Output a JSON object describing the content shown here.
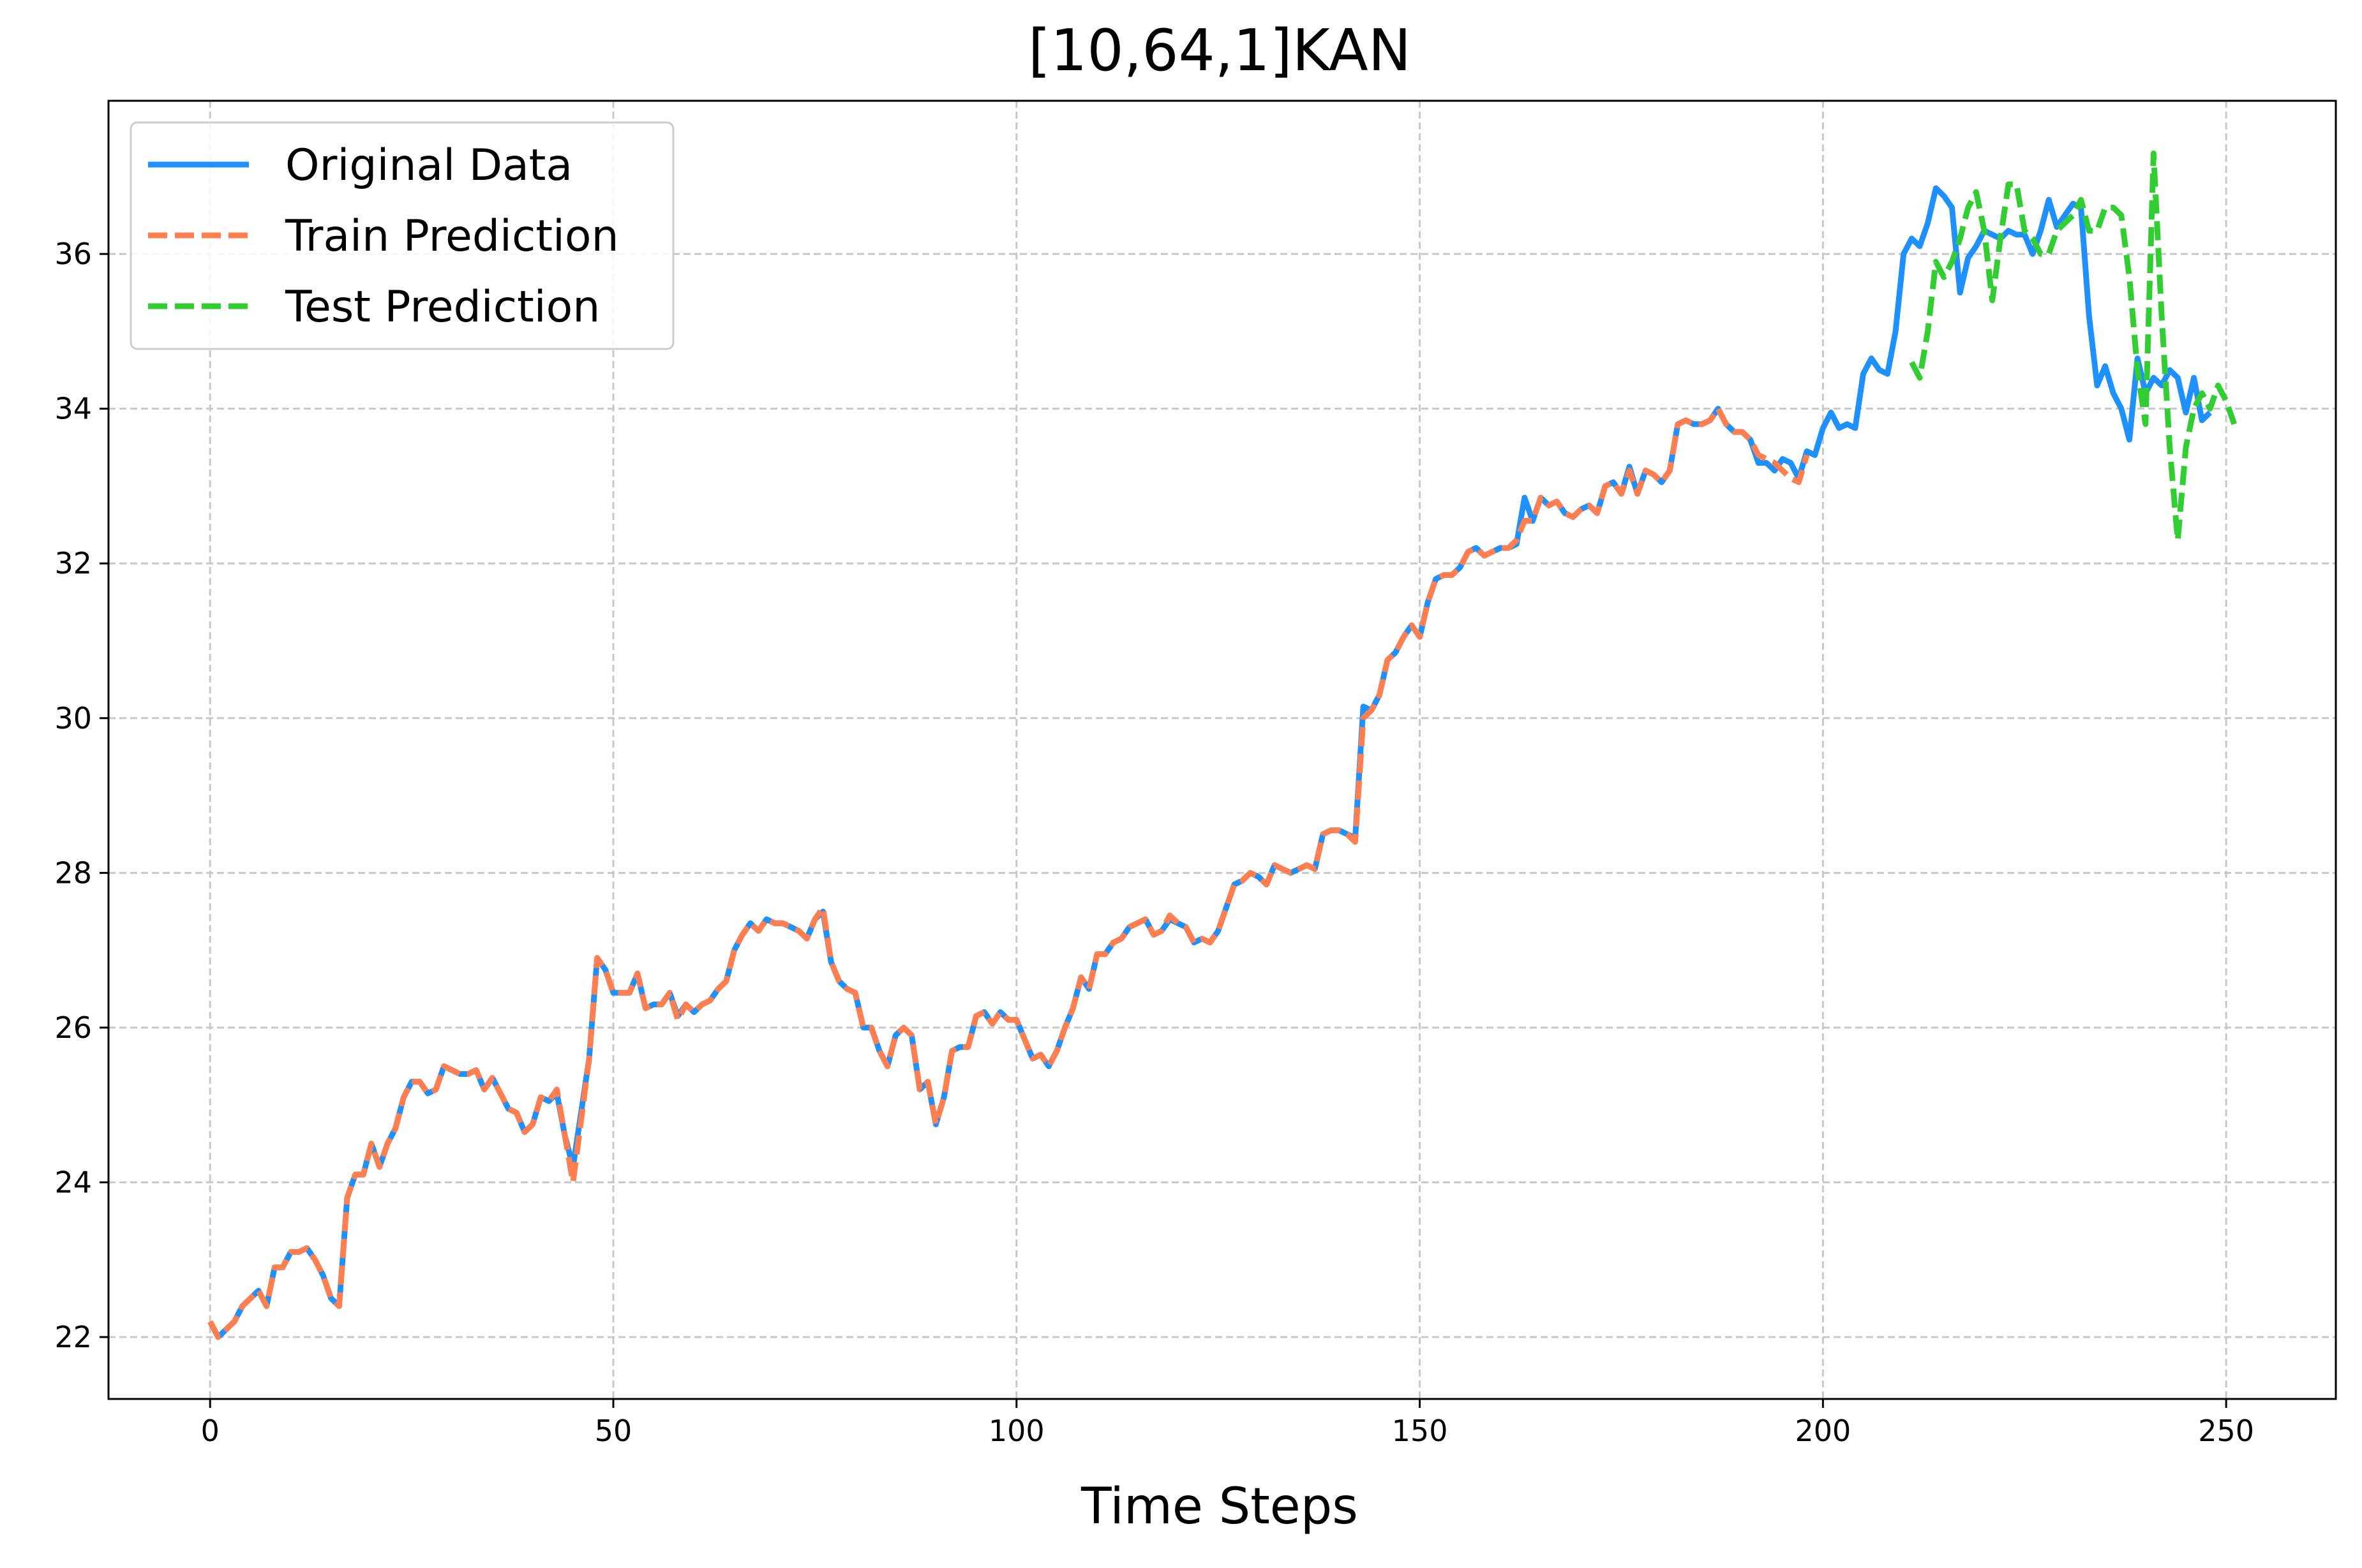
{
  "chart_data": {
    "type": "line",
    "title": "[10,64,1]KAN",
    "xlabel": "Time Steps",
    "ylabel": "",
    "xlim": [
      -12.6,
      263.6
    ],
    "ylim": [
      21.2,
      37.98
    ],
    "xticks": [
      0,
      50,
      100,
      150,
      200,
      250
    ],
    "yticks": [
      22,
      24,
      26,
      28,
      30,
      32,
      34,
      36
    ],
    "grid": true,
    "legend_position": "top-left",
    "colors": {
      "original": "#1e90ff",
      "train": "#ff7f50",
      "test": "#32cd32"
    },
    "series": [
      {
        "name": "Original Data",
        "style": "solid",
        "x_start": 0,
        "values": [
          22.2,
          22.0,
          22.1,
          22.2,
          22.4,
          22.5,
          22.6,
          22.4,
          22.9,
          22.9,
          23.1,
          23.1,
          23.15,
          23.0,
          22.8,
          22.5,
          22.4,
          23.8,
          24.1,
          24.1,
          24.5,
          24.2,
          24.5,
          24.7,
          25.1,
          25.3,
          25.3,
          25.15,
          25.2,
          25.5,
          25.45,
          25.4,
          25.4,
          25.45,
          25.2,
          25.35,
          25.15,
          24.95,
          24.9,
          24.65,
          24.75,
          25.1,
          25.05,
          25.15,
          24.6,
          24.2,
          24.9,
          25.6,
          26.9,
          26.75,
          26.45,
          26.45,
          26.45,
          26.7,
          26.25,
          26.3,
          26.3,
          26.45,
          26.15,
          26.3,
          26.2,
          26.3,
          26.35,
          26.5,
          26.6,
          27.0,
          27.2,
          27.35,
          27.25,
          27.4,
          27.35,
          27.35,
          27.3,
          27.25,
          27.15,
          27.4,
          27.5,
          26.85,
          26.6,
          26.5,
          26.45,
          26.0,
          26.0,
          25.7,
          25.5,
          25.9,
          26.0,
          25.9,
          25.2,
          25.3,
          24.75,
          25.1,
          25.7,
          25.75,
          25.75,
          26.15,
          26.2,
          26.05,
          26.2,
          26.1,
          26.1,
          25.85,
          25.6,
          25.65,
          25.5,
          25.7,
          26.0,
          26.25,
          26.65,
          26.5,
          26.95,
          26.95,
          27.1,
          27.15,
          27.3,
          27.35,
          27.4,
          27.2,
          27.25,
          27.4,
          27.35,
          27.3,
          27.1,
          27.15,
          27.1,
          27.25,
          27.55,
          27.85,
          27.9,
          28.0,
          27.95,
          27.85,
          28.1,
          28.05,
          28.0,
          28.05,
          28.1,
          28.05,
          28.5,
          28.55,
          28.55,
          28.5,
          28.45,
          30.15,
          30.1,
          30.3,
          30.75,
          30.85,
          31.05,
          31.2,
          31.05,
          31.5,
          31.8,
          31.85,
          31.85,
          31.95,
          32.15,
          32.2,
          32.1,
          32.15,
          32.2,
          32.2,
          32.25,
          32.85,
          32.55,
          32.85,
          32.75,
          32.8,
          32.65,
          32.6,
          32.7,
          32.75,
          32.65,
          33.0,
          33.05,
          32.9,
          33.25,
          32.9,
          33.2,
          33.15,
          33.05,
          33.2,
          33.8,
          33.85,
          33.8,
          33.8,
          33.85,
          34.0,
          33.8,
          33.7,
          33.7,
          33.6,
          33.3,
          33.3,
          33.2,
          33.35,
          33.3,
          33.1,
          33.45,
          33.4,
          33.75,
          33.95,
          33.75,
          33.8,
          33.75,
          34.45,
          34.65,
          34.5,
          34.45,
          35.0,
          36.0,
          36.2,
          36.1,
          36.4,
          36.85,
          36.75,
          36.6,
          35.5,
          35.95,
          36.1,
          36.3,
          36.25,
          36.2,
          36.3,
          36.25,
          36.25,
          36.0,
          36.3,
          36.7,
          36.35,
          36.5,
          36.65,
          36.6,
          35.2,
          34.3,
          34.55,
          34.2,
          34.0,
          33.6,
          34.65,
          34.2,
          34.4,
          34.3,
          34.5,
          34.4,
          33.95,
          34.4,
          33.85,
          33.95
        ]
      },
      {
        "name": "Train Prediction",
        "style": "dashed",
        "x_start": 0,
        "values": [
          22.2,
          22.0,
          22.1,
          22.2,
          22.4,
          22.5,
          22.6,
          22.4,
          22.9,
          22.9,
          23.1,
          23.1,
          23.15,
          23.0,
          22.8,
          22.5,
          22.4,
          23.8,
          24.1,
          24.1,
          24.5,
          24.2,
          24.5,
          24.7,
          25.1,
          25.3,
          25.3,
          25.15,
          25.2,
          25.5,
          25.45,
          25.4,
          25.4,
          25.45,
          25.2,
          25.35,
          25.15,
          24.95,
          24.9,
          24.65,
          24.75,
          25.1,
          25.05,
          25.2,
          24.6,
          24.0,
          24.8,
          25.6,
          26.9,
          26.75,
          26.45,
          26.45,
          26.45,
          26.7,
          26.25,
          26.3,
          26.3,
          26.45,
          26.1,
          26.3,
          26.2,
          26.3,
          26.35,
          26.5,
          26.6,
          27.0,
          27.2,
          27.35,
          27.25,
          27.4,
          27.35,
          27.35,
          27.3,
          27.25,
          27.15,
          27.4,
          27.55,
          26.85,
          26.6,
          26.5,
          26.45,
          26.0,
          26.0,
          25.7,
          25.5,
          25.9,
          26.0,
          25.9,
          25.2,
          25.3,
          24.75,
          25.1,
          25.7,
          25.75,
          25.75,
          26.15,
          26.2,
          26.05,
          26.2,
          26.1,
          26.1,
          25.85,
          25.6,
          25.65,
          25.5,
          25.7,
          26.0,
          26.25,
          26.65,
          26.5,
          26.95,
          26.95,
          27.1,
          27.15,
          27.3,
          27.35,
          27.4,
          27.2,
          27.25,
          27.45,
          27.35,
          27.3,
          27.1,
          27.15,
          27.1,
          27.25,
          27.55,
          27.85,
          27.9,
          28.0,
          27.95,
          27.85,
          28.1,
          28.05,
          28.0,
          28.05,
          28.1,
          28.05,
          28.5,
          28.55,
          28.55,
          28.5,
          28.4,
          30.0,
          30.1,
          30.3,
          30.75,
          30.85,
          31.05,
          31.2,
          31.05,
          31.5,
          31.8,
          31.85,
          31.85,
          31.95,
          32.15,
          32.2,
          32.1,
          32.15,
          32.2,
          32.2,
          32.3,
          32.55,
          32.55,
          32.85,
          32.75,
          32.8,
          32.65,
          32.6,
          32.7,
          32.75,
          32.65,
          33.0,
          33.05,
          32.9,
          33.2,
          32.9,
          33.2,
          33.15,
          33.05,
          33.2,
          33.8,
          33.85,
          33.8,
          33.8,
          33.85,
          34.0,
          33.8,
          33.7,
          33.7,
          33.6,
          33.4,
          33.35,
          33.3,
          33.2,
          33.1,
          33.05,
          33.4
        ]
      },
      {
        "name": "Test Prediction",
        "style": "dashed",
        "x_start": 211,
        "values": [
          34.6,
          34.4,
          35.0,
          35.9,
          35.7,
          35.9,
          36.2,
          36.6,
          36.8,
          36.3,
          35.4,
          36.2,
          36.9,
          36.9,
          36.3,
          36.2,
          36.0,
          36.0,
          36.3,
          36.4,
          36.5,
          36.7,
          36.3,
          36.3,
          36.6,
          36.6,
          36.5,
          35.7,
          34.5,
          33.8,
          37.3,
          35.2,
          33.5,
          32.3,
          33.5,
          34.0,
          34.2,
          34.0,
          34.3,
          34.1,
          33.8
        ]
      }
    ]
  }
}
